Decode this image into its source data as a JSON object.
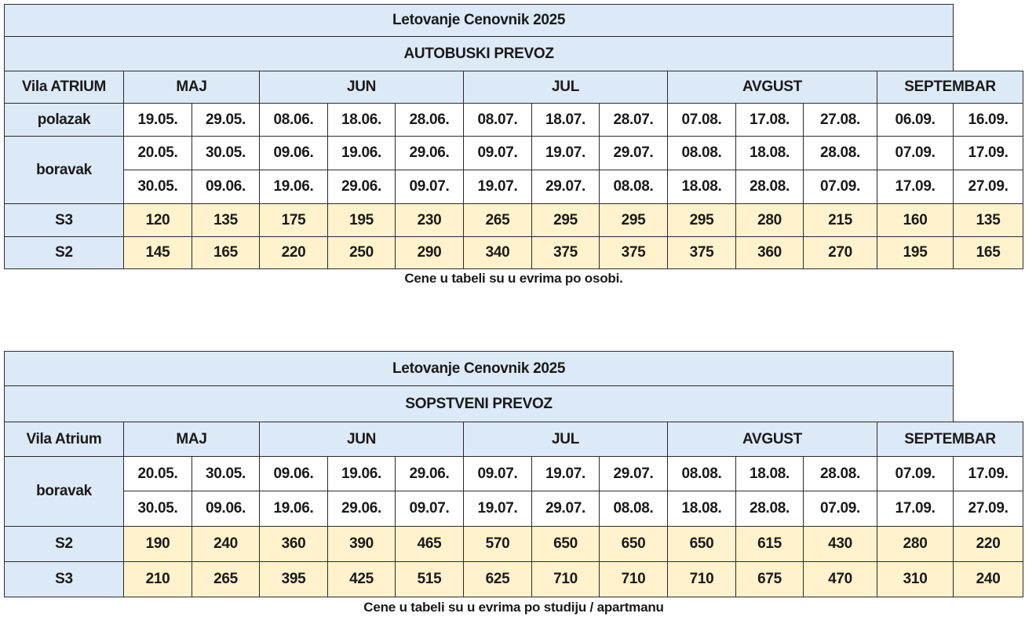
{
  "table1": {
    "title": "Letovanje Cenovnik 2025",
    "subtitle": "AUTOBUSKI PREVOZ",
    "hotel": "Vila ATRIUM",
    "months": [
      "MAJ",
      "JUN",
      "JUL",
      "AVGUST",
      "SEPTEMBAR"
    ],
    "departure_label": "polazak",
    "departure": [
      "19.05.",
      "29.05.",
      "08.06.",
      "18.06.",
      "28.06.",
      "08.07.",
      "18.07.",
      "28.07.",
      "07.08.",
      "17.08.",
      "27.08.",
      "06.09.",
      "16.09."
    ],
    "stay_label": "boravak",
    "stay_from": [
      "20.05.",
      "30.05.",
      "09.06.",
      "19.06.",
      "29.06.",
      "09.07.",
      "19.07.",
      "29.07.",
      "08.08.",
      "18.08.",
      "28.08.",
      "07.09.",
      "17.09."
    ],
    "stay_to": [
      "30.05.",
      "09.06.",
      "19.06.",
      "29.06.",
      "09.07.",
      "19.07.",
      "29.07.",
      "08.08.",
      "18.08.",
      "28.08.",
      "07.09.",
      "17.09.",
      "27.09."
    ],
    "rows": [
      {
        "label": "S3",
        "prices": [
          "120",
          "135",
          "175",
          "195",
          "230",
          "265",
          "295",
          "295",
          "295",
          "280",
          "215",
          "160",
          "135"
        ]
      },
      {
        "label": "S2",
        "prices": [
          "145",
          "165",
          "220",
          "250",
          "290",
          "340",
          "375",
          "375",
          "375",
          "360",
          "270",
          "195",
          "165"
        ]
      }
    ],
    "note": "Cene u tabeli su u evrima po osobi."
  },
  "table2": {
    "title": "Letovanje Cenovnik 2025",
    "subtitle": "SOPSTVENI PREVOZ",
    "hotel": "Vila Atrium",
    "months": [
      "MAJ",
      "JUN",
      "JUL",
      "AVGUST",
      "SEPTEMBAR"
    ],
    "stay_label": "boravak",
    "stay_from": [
      "20.05.",
      "30.05.",
      "09.06.",
      "19.06.",
      "29.06.",
      "09.07.",
      "19.07.",
      "29.07.",
      "08.08.",
      "18.08.",
      "28.08.",
      "07.09.",
      "17.09."
    ],
    "stay_to": [
      "30.05.",
      "09.06.",
      "19.06.",
      "29.06.",
      "09.07.",
      "19.07.",
      "29.07.",
      "08.08.",
      "18.08.",
      "28.08.",
      "07.09.",
      "17.09.",
      "27.09."
    ],
    "rows": [
      {
        "label": "S2",
        "prices": [
          "190",
          "240",
          "360",
          "390",
          "465",
          "570",
          "650",
          "650",
          "650",
          "615",
          "430",
          "280",
          "220"
        ]
      },
      {
        "label": "S3",
        "prices": [
          "210",
          "265",
          "395",
          "425",
          "515",
          "625",
          "710",
          "710",
          "710",
          "675",
          "470",
          "310",
          "240"
        ]
      }
    ],
    "note": "Cene u tabeli su u evrima po studiju / apartmanu"
  },
  "colors": {
    "header_bg": "#dce9f7",
    "price_bg": "#fff2cc",
    "border": "#2b2b2b"
  }
}
